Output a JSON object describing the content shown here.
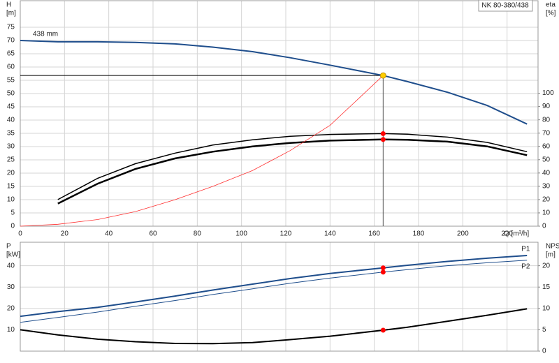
{
  "chart_data": [
    {
      "type": "line",
      "title": "NK 80-380/438",
      "y_label": "H",
      "y_unit": "[m]",
      "y2_label": "eta",
      "y2_unit": "[%]",
      "x_label": "Q [m³/h]",
      "xlim": [
        0,
        234
      ],
      "xticks": [
        0,
        20,
        40,
        60,
        80,
        100,
        120,
        140,
        160,
        180,
        200,
        220
      ],
      "show_xtick_labels": true,
      "ylim": [
        0,
        85
      ],
      "yticks": [
        0,
        5,
        10,
        15,
        20,
        25,
        30,
        35,
        40,
        45,
        50,
        55,
        60,
        65,
        70,
        75
      ],
      "y2lim": [
        0,
        169.6
      ],
      "y2ticks": [
        0,
        10,
        20,
        30,
        40,
        50,
        60,
        70,
        80,
        90,
        100
      ],
      "grid": true,
      "series": [
        {
          "name": "438 mm",
          "label_at": "start",
          "label_side": "above",
          "color": "#1f4e8c",
          "width": 2,
          "x": [
            0,
            17,
            35,
            52,
            70,
            87,
            105,
            122,
            140,
            164,
            175,
            193,
            211,
            229
          ],
          "values": [
            70,
            69.5,
            69.5,
            69.3,
            68.7,
            67.5,
            65.8,
            63.5,
            60.7,
            56.8,
            54.5,
            50.5,
            45.5,
            38.5
          ]
        },
        {
          "color": "#000000",
          "width": 1.5,
          "axis": "y2",
          "x": [
            17,
            35,
            52,
            70,
            87,
            105,
            122,
            140,
            164,
            175,
            193,
            211,
            229
          ],
          "values": [
            20,
            36,
            47,
            55,
            61,
            65,
            67.6,
            69,
            69.6,
            69.2,
            67,
            63,
            56
          ]
        },
        {
          "color": "#000000",
          "width": 2.5,
          "axis": "y2",
          "x": [
            17,
            35,
            52,
            70,
            87,
            105,
            122,
            140,
            164,
            175,
            193,
            211,
            229
          ],
          "values": [
            17,
            32,
            43,
            51,
            56,
            60,
            62.6,
            64.4,
            65.2,
            65,
            63.6,
            60,
            53.4
          ]
        },
        {
          "color": "#ff3030",
          "width": 0.8,
          "x": [
            0,
            17,
            35,
            52,
            70,
            87,
            105,
            122,
            140,
            164
          ],
          "values": [
            0,
            0.7,
            2.5,
            5.5,
            10,
            15,
            21,
            28.5,
            38,
            56.8
          ]
        }
      ],
      "duty_point": {
        "x": 164,
        "y": 56.8,
        "color": "#ffcc00"
      },
      "markers": [
        {
          "x": 164,
          "y": 69.6,
          "axis": "y2",
          "color": "#ff0000"
        },
        {
          "x": 164,
          "y": 65.2,
          "axis": "y2",
          "color": "#ff0000"
        }
      ]
    },
    {
      "type": "line",
      "y_label": "P",
      "y_unit": "[kW]",
      "y2_label": "NPSH",
      "y2_unit": "[m]",
      "xlim": [
        0,
        234
      ],
      "xticks": [
        0,
        20,
        40,
        60,
        80,
        100,
        120,
        140,
        160,
        180,
        200,
        220
      ],
      "show_xtick_labels": false,
      "ylim": [
        0,
        51
      ],
      "yticks": [
        10,
        20,
        30,
        40
      ],
      "y2lim": [
        0,
        25.5
      ],
      "y2ticks": [
        0,
        5,
        10,
        15,
        20
      ],
      "grid": true,
      "series": [
        {
          "name": "P1",
          "label_at": "end",
          "label_side": "above",
          "color": "#1f4e8c",
          "width": 2,
          "x": [
            0,
            17,
            35,
            52,
            70,
            87,
            105,
            122,
            140,
            164,
            175,
            193,
            211,
            229
          ],
          "values": [
            16.3,
            18.5,
            20.5,
            23,
            25.8,
            28.6,
            31.4,
            34,
            36.4,
            39,
            40.2,
            42,
            43.5,
            44.8
          ]
        },
        {
          "name": "P2",
          "label_at": "end",
          "label_side": "below",
          "color": "#1f4e8c",
          "width": 1,
          "x": [
            0,
            17,
            35,
            52,
            70,
            87,
            105,
            122,
            140,
            164,
            175,
            193,
            211,
            229
          ],
          "values": [
            13.5,
            15.8,
            18.3,
            21,
            23.7,
            26.5,
            29.2,
            31.8,
            34.2,
            37,
            38.2,
            40,
            41.4,
            42.6
          ]
        },
        {
          "color": "#000000",
          "width": 2,
          "axis": "y2",
          "x": [
            0,
            17,
            35,
            52,
            70,
            87,
            105,
            122,
            140,
            164,
            175,
            193,
            211,
            229
          ],
          "values": [
            5,
            3.8,
            2.8,
            2.2,
            1.8,
            1.75,
            2,
            2.7,
            3.5,
            4.9,
            5.6,
            7,
            8.4,
            9.9
          ]
        }
      ],
      "markers": [
        {
          "x": 164,
          "y": 39,
          "axis": "y",
          "color": "#ff0000"
        },
        {
          "x": 164,
          "y": 37,
          "axis": "y",
          "color": "#ff0000"
        },
        {
          "x": 164,
          "y": 4.9,
          "axis": "y2",
          "color": "#ff0000"
        }
      ]
    }
  ]
}
